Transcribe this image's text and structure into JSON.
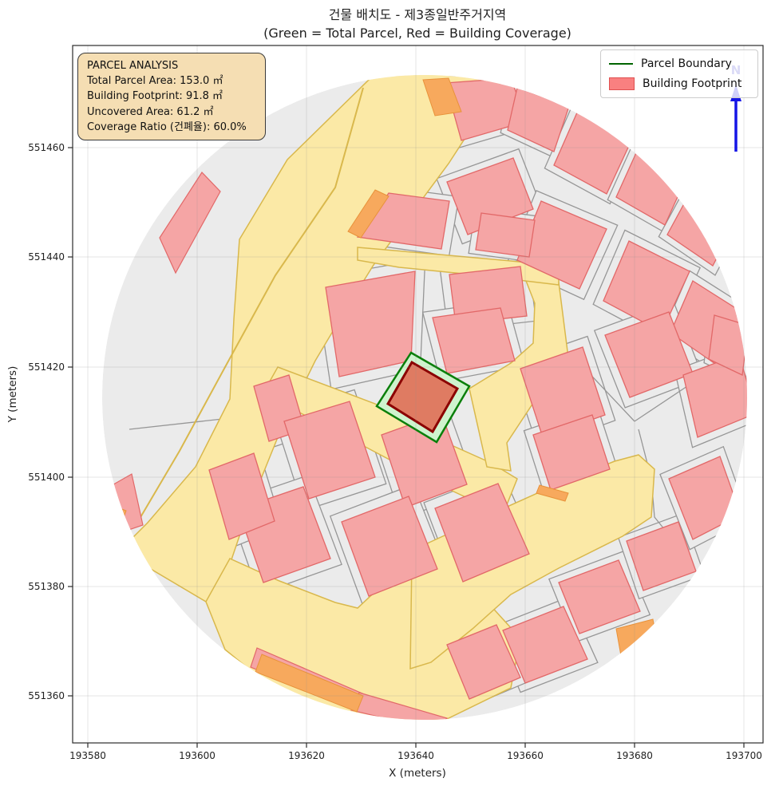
{
  "title": {
    "line1": "건물 배치도 - 제3종일반주거지역",
    "line2": "(Green = Total Parcel, Red = Building Coverage)"
  },
  "legend": {
    "items": [
      {
        "label": "Parcel Boundary",
        "swatch": "line",
        "color": "#006400"
      },
      {
        "label": "Building Footprint",
        "swatch": "patch",
        "fill": "#F98080",
        "edge": "#E05050"
      }
    ]
  },
  "info_box": {
    "title": "PARCEL ANALYSIS",
    "lines": [
      "Total Parcel Area: 153.0 ㎡",
      "Building Footprint: 91.8 ㎡",
      "Uncovered Area: 61.2 ㎡",
      "Coverage Ratio (건폐율): 60.0%"
    ]
  },
  "axes": {
    "x_label": "X (meters)",
    "y_label": "Y (meters)",
    "x_ticks": [
      "193580",
      "193600",
      "193620",
      "193640",
      "193660",
      "193680",
      "193700"
    ],
    "y_ticks": [
      "551460",
      "551440",
      "551420",
      "551400",
      "551380",
      "551360"
    ]
  },
  "north": {
    "label": "N",
    "color": "#2626D8"
  },
  "map_colors": {
    "base_fill": "#EBEBEB",
    "parcel_line": "#969696",
    "road_fill": "#FBE9A6",
    "road_stroke": "#D9B84C",
    "orange_fill": "#F7A95D",
    "orange_stroke": "#E8923A",
    "building_fill": "#F5A5A5",
    "building_stroke": "#E26868",
    "parcel_green_fill": "#CFF3CE",
    "parcel_green_stroke": "#0A7F0A",
    "footprint_fill": "#DF7B62",
    "footprint_stroke": "#8B0000",
    "grid": "#8c8c8c",
    "spine": "#2b2b2b",
    "text": "#1f1f1f"
  }
}
